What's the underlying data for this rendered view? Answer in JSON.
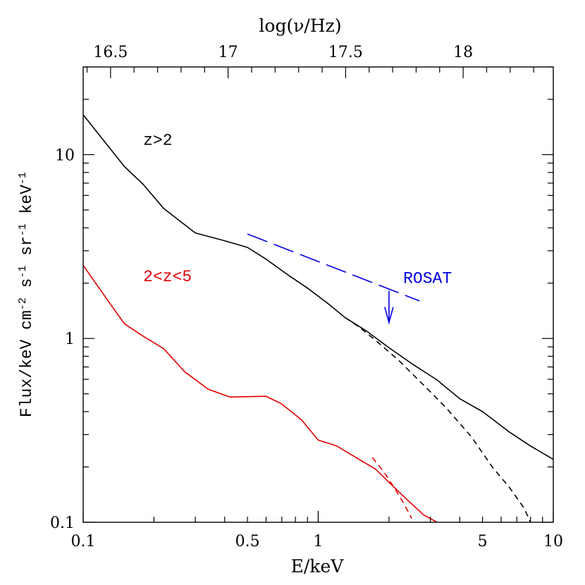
{
  "chart_data": {
    "type": "line",
    "xlabel": "E/keV",
    "ylabel": "Flux/keV cm",
    "ylabel_parts": [
      {
        "t": "Flux/keV cm",
        "sup": false
      },
      {
        "t": "-2",
        "sup": true
      },
      {
        "t": " s",
        "sup": false
      },
      {
        "t": "-1",
        "sup": true
      },
      {
        "t": " sr",
        "sup": false
      },
      {
        "t": "-1",
        "sup": true
      },
      {
        "t": " keV",
        "sup": false
      },
      {
        "t": "-1",
        "sup": true
      }
    ],
    "top_axis_label": "log(ν/Hz)",
    "x_scale": "log",
    "y_scale": "log",
    "xlim": [
      0.1,
      10
    ],
    "ylim": [
      0.1,
      30
    ],
    "x_ticks": [
      {
        "value": 0.1,
        "label": "0.1"
      },
      {
        "value": 0.5,
        "label": "0.5"
      },
      {
        "value": 1,
        "label": "1"
      },
      {
        "value": 5,
        "label": "5"
      },
      {
        "value": 10,
        "label": "10"
      }
    ],
    "y_ticks": [
      {
        "value": 0.1,
        "label": "0.1"
      },
      {
        "value": 1,
        "label": "1"
      },
      {
        "value": 10,
        "label": "10"
      }
    ],
    "top_ticks": [
      {
        "value": 16.5,
        "label": "16.5"
      },
      {
        "value": 17,
        "label": "17"
      },
      {
        "value": 17.5,
        "label": "17.5"
      },
      {
        "value": 18,
        "label": "18"
      }
    ],
    "series": [
      {
        "name": "z>2",
        "color": "#000000",
        "style": "solid",
        "x": [
          0.1,
          0.12,
          0.15,
          0.18,
          0.22,
          0.3,
          0.4,
          0.5,
          0.6,
          0.75,
          0.9,
          1.1,
          1.3,
          1.6,
          2.0,
          2.5,
          3.2,
          4.0,
          5.0,
          6.5,
          8.0,
          10.0
        ],
        "y": [
          16.5,
          12.3,
          8.6,
          6.9,
          5.1,
          3.75,
          3.4,
          3.13,
          2.7,
          2.2,
          1.88,
          1.55,
          1.3,
          1.1,
          0.89,
          0.73,
          0.595,
          0.47,
          0.4,
          0.31,
          0.26,
          0.22
        ]
      },
      {
        "name": "z>2 (dashed)",
        "color": "#000000",
        "style": "dashed",
        "x": [
          1.3,
          1.5,
          1.8,
          2.2,
          2.8,
          3.5,
          4.5,
          5.5,
          6.5,
          7.5,
          8.0
        ],
        "y": [
          1.3,
          1.15,
          0.95,
          0.76,
          0.56,
          0.42,
          0.29,
          0.2,
          0.155,
          0.12,
          0.1
        ]
      },
      {
        "name": "2<z<5",
        "color": "#e00000",
        "style": "solid",
        "x": [
          0.1,
          0.11,
          0.13,
          0.15,
          0.18,
          0.22,
          0.27,
          0.34,
          0.42,
          0.6,
          0.7,
          0.85,
          1.0,
          1.2,
          1.45,
          1.75,
          2.0,
          2.4,
          2.8,
          3.2
        ],
        "y": [
          2.5,
          2.1,
          1.55,
          1.2,
          1.03,
          0.88,
          0.66,
          0.53,
          0.48,
          0.485,
          0.44,
          0.36,
          0.28,
          0.26,
          0.225,
          0.195,
          0.165,
          0.132,
          0.11,
          0.1
        ]
      },
      {
        "name": "2<z<5 (dashed)",
        "color": "#e00000",
        "style": "dashed",
        "x": [
          1.7,
          1.9,
          2.1,
          2.3,
          2.5
        ],
        "y": [
          0.225,
          0.188,
          0.155,
          0.128,
          0.105
        ]
      },
      {
        "name": "ROSAT",
        "color": "#0000e0",
        "style": "longdash",
        "x": [
          0.5,
          2.7
        ],
        "y": [
          3.7,
          1.6
        ]
      }
    ],
    "annotations": [
      {
        "text": "z>2",
        "x": 0.18,
        "y": 11.3,
        "color": "#000000"
      },
      {
        "text": "2<z<5",
        "x": 0.18,
        "y": 2.05,
        "color": "#e00000"
      },
      {
        "text": "ROSAT",
        "x": 2.3,
        "y": 2.0,
        "color": "#0000e0"
      }
    ],
    "upper_limit_arrow": {
      "x": 2.0,
      "y_from": 1.82,
      "y_to": 1.22,
      "color": "#0000e0"
    }
  }
}
